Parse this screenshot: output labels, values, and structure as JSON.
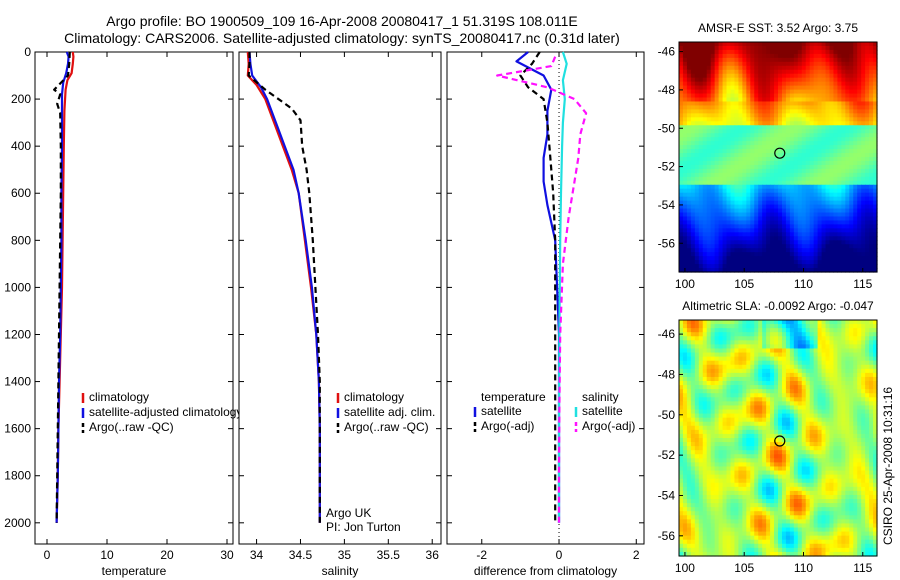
{
  "figure": {
    "title_line1": "Argo profile: BO 1900509_109 16-Apr-2008 20080417_1 51.319S 108.011E",
    "title_line2": "Climatology: CARS2006. Satellite-adjusted climatology: synTS_20080417.nc (0.31d later)",
    "side_caption": "CSIRO 25-Apr-2008 10:31:16"
  },
  "colors": {
    "climatology": "#e01010",
    "satellite": "#1010e0",
    "argo": "#000000",
    "sal_satellite": "#20e0e0",
    "sal_argo": "#ff10ff"
  },
  "chart_data": [
    {
      "id": "temperature",
      "type": "line",
      "xlabel": "temperature",
      "ylabel": "",
      "xlim": [
        -2,
        31
      ],
      "ylim": [
        0,
        2090
      ],
      "y_inverted": true,
      "xticks": [
        0,
        10,
        20,
        30
      ],
      "yticks": [
        0,
        200,
        400,
        600,
        800,
        1000,
        1200,
        1400,
        1600,
        1800,
        2000
      ],
      "legend": [
        "climatology",
        "satellite-adjusted climatology",
        "Argo(..raw -QC)"
      ],
      "legend_location": "lower-right",
      "series": [
        {
          "name": "climatology",
          "role": "climatology",
          "dash": "",
          "points": [
            [
              4.3,
              0
            ],
            [
              4.4,
              20
            ],
            [
              4.3,
              50
            ],
            [
              4.1,
              90
            ],
            [
              3.4,
              120
            ],
            [
              3.1,
              160
            ],
            [
              2.9,
              250
            ],
            [
              2.8,
              400
            ],
            [
              2.7,
              600
            ],
            [
              2.6,
              800
            ],
            [
              2.5,
              1000
            ],
            [
              2.3,
              1200
            ],
            [
              2.1,
              1400
            ],
            [
              1.9,
              1600
            ],
            [
              1.8,
              1800
            ],
            [
              1.6,
              2000
            ]
          ]
        },
        {
          "name": "satellite-adjusted climatology",
          "role": "satellite",
          "dash": "",
          "points": [
            [
              3.3,
              0
            ],
            [
              3.6,
              20
            ],
            [
              3.5,
              50
            ],
            [
              3.2,
              90
            ],
            [
              2.7,
              130
            ],
            [
              2.5,
              180
            ],
            [
              2.5,
              250
            ],
            [
              2.5,
              400
            ],
            [
              2.4,
              600
            ],
            [
              2.4,
              800
            ],
            [
              2.3,
              1000
            ],
            [
              2.2,
              1200
            ],
            [
              2.0,
              1400
            ],
            [
              1.9,
              1600
            ],
            [
              1.8,
              1800
            ],
            [
              1.6,
              2000
            ]
          ]
        },
        {
          "name": "Argo(..raw -QC)",
          "role": "argo",
          "dash": "6,4",
          "points": [
            [
              3.8,
              0
            ],
            [
              3.7,
              50
            ],
            [
              3.5,
              100
            ],
            [
              1.2,
              160
            ],
            [
              2.2,
              180
            ],
            [
              1.7,
              220
            ],
            [
              2.2,
              260
            ],
            [
              2.3,
              400
            ],
            [
              2.3,
              600
            ],
            [
              2.2,
              800
            ],
            [
              2.1,
              1000
            ],
            [
              2.0,
              1200
            ],
            [
              1.9,
              1400
            ],
            [
              1.8,
              1600
            ],
            [
              1.7,
              1800
            ],
            [
              1.6,
              2000
            ]
          ]
        }
      ]
    },
    {
      "id": "salinity",
      "type": "line",
      "xlabel": "salinity",
      "ylabel": "",
      "xlim": [
        33.8,
        36.1
      ],
      "ylim": [
        0,
        2090
      ],
      "y_inverted": true,
      "xticks": [
        34,
        34.5,
        35,
        35.5,
        36
      ],
      "legend": [
        "climatology",
        "satellite adj. clim.",
        "Argo(..raw -QC)"
      ],
      "legend_location": "lower-right",
      "annotation_line1": "Argo UK",
      "annotation_line2": "PI: Jon Turton",
      "series": [
        {
          "name": "climatology",
          "role": "climatology",
          "dash": "",
          "points": [
            [
              33.9,
              0
            ],
            [
              33.91,
              50
            ],
            [
              33.9,
              100
            ],
            [
              34.0,
              140
            ],
            [
              34.1,
              200
            ],
            [
              34.2,
              300
            ],
            [
              34.3,
              400
            ],
            [
              34.4,
              500
            ],
            [
              34.48,
              600
            ],
            [
              34.55,
              800
            ],
            [
              34.62,
              1000
            ],
            [
              34.68,
              1200
            ],
            [
              34.71,
              1400
            ],
            [
              34.72,
              1600
            ],
            [
              34.72,
              1800
            ],
            [
              34.72,
              2000
            ]
          ]
        },
        {
          "name": "satellite adj. clim.",
          "role": "satellite",
          "dash": "",
          "points": [
            [
              33.92,
              0
            ],
            [
              33.93,
              50
            ],
            [
              33.95,
              100
            ],
            [
              34.05,
              150
            ],
            [
              34.12,
              200
            ],
            [
              34.22,
              300
            ],
            [
              34.32,
              400
            ],
            [
              34.42,
              500
            ],
            [
              34.48,
              600
            ],
            [
              34.56,
              800
            ],
            [
              34.63,
              1000
            ],
            [
              34.68,
              1200
            ],
            [
              34.71,
              1400
            ],
            [
              34.72,
              1600
            ],
            [
              34.72,
              1800
            ],
            [
              34.72,
              2000
            ]
          ]
        },
        {
          "name": "Argo(..raw -QC)",
          "role": "argo",
          "dash": "6,4",
          "points": [
            [
              33.92,
              0
            ],
            [
              33.92,
              50
            ],
            [
              33.91,
              100
            ],
            [
              34.1,
              160
            ],
            [
              34.4,
              240
            ],
            [
              34.5,
              290
            ],
            [
              34.52,
              400
            ],
            [
              34.57,
              500
            ],
            [
              34.6,
              600
            ],
            [
              34.64,
              800
            ],
            [
              34.67,
              1000
            ],
            [
              34.7,
              1200
            ],
            [
              34.72,
              1400
            ],
            [
              34.72,
              1600
            ],
            [
              34.72,
              1800
            ],
            [
              34.72,
              2000
            ]
          ]
        }
      ]
    },
    {
      "id": "difference",
      "type": "line",
      "xlabel": "difference from climatology",
      "ylabel": "",
      "xlim": [
        -2.9,
        2.2
      ],
      "ylim": [
        0,
        2090
      ],
      "y_inverted": true,
      "xticks": [
        -2,
        0,
        2
      ],
      "legend_left_title": "temperature",
      "legend_left": [
        "satellite",
        "Argo(-adj)"
      ],
      "legend_right_title": "salinity",
      "legend_right": [
        "satellite",
        "Argo(-adj)"
      ],
      "legend_location": "lower-center",
      "series": [
        {
          "name": "temperature satellite",
          "role": "satellite",
          "dash": "",
          "points": [
            [
              -0.8,
              0
            ],
            [
              -1.1,
              40
            ],
            [
              -0.4,
              100
            ],
            [
              -0.2,
              160
            ],
            [
              -0.3,
              250
            ],
            [
              -0.3,
              350
            ],
            [
              -0.4,
              450
            ],
            [
              -0.4,
              550
            ],
            [
              -0.3,
              650
            ],
            [
              -0.1,
              800
            ],
            [
              -0.05,
              1000
            ],
            [
              0,
              1200
            ],
            [
              0,
              1400
            ],
            [
              0,
              1600
            ],
            [
              0,
              2000
            ]
          ]
        },
        {
          "name": "temperature Argo(-adj)",
          "role": "argo",
          "dash": "6,4",
          "points": [
            [
              -0.5,
              0
            ],
            [
              -0.7,
              50
            ],
            [
              -1.0,
              100
            ],
            [
              -0.8,
              150
            ],
            [
              -0.4,
              200
            ],
            [
              -0.3,
              300
            ],
            [
              -0.25,
              400
            ],
            [
              -0.15,
              600
            ],
            [
              -0.1,
              800
            ],
            [
              -0.1,
              1000
            ],
            [
              -0.1,
              1200
            ],
            [
              -0.1,
              1400
            ],
            [
              -0.1,
              1600
            ],
            [
              -0.1,
              1800
            ],
            [
              -0.1,
              2000
            ]
          ]
        },
        {
          "name": "salinity satellite",
          "role": "sal_satellite",
          "dash": "",
          "points": [
            [
              0.1,
              0
            ],
            [
              0.2,
              50
            ],
            [
              0.1,
              120
            ],
            [
              0.15,
              200
            ],
            [
              0.1,
              300
            ],
            [
              0.08,
              400
            ],
            [
              0.05,
              600
            ],
            [
              0.03,
              800
            ],
            [
              0.02,
              1000
            ],
            [
              0.01,
              1200
            ],
            [
              0,
              1500
            ],
            [
              0,
              2000
            ]
          ]
        },
        {
          "name": "salinity Argo(-adj)",
          "role": "sal_argo",
          "dash": "6,4",
          "points": [
            [
              -0.1,
              20
            ],
            [
              -0.2,
              60
            ],
            [
              -1.6,
              100
            ],
            [
              -0.3,
              150
            ],
            [
              0.4,
              200
            ],
            [
              0.7,
              260
            ],
            [
              0.55,
              350
            ],
            [
              0.5,
              450
            ],
            [
              0.4,
              550
            ],
            [
              0.25,
              700
            ],
            [
              0.1,
              900
            ],
            [
              0.03,
              1200
            ],
            [
              0.01,
              1500
            ],
            [
              0,
              1800
            ],
            [
              0,
              2000
            ]
          ]
        }
      ]
    },
    {
      "id": "sst_map",
      "type": "heatmap",
      "title": "AMSR-E SST: 3.52  Argo: 3.75",
      "xticks": [
        100,
        105,
        110,
        115
      ],
      "yticks": [
        -46,
        -48,
        -50,
        -52,
        -54,
        -56
      ],
      "xlim": [
        99.5,
        116.2
      ],
      "ylim": [
        -57.5,
        -45.5
      ],
      "colorscale": "jet",
      "marker": [
        108.0,
        -51.3
      ]
    },
    {
      "id": "sla_map",
      "type": "heatmap",
      "title": "Altimetric SLA: -0.0092  Argo: -0.047",
      "xticks": [
        100,
        105,
        110,
        115
      ],
      "yticks": [
        -46,
        -48,
        -50,
        -52,
        -54,
        -56
      ],
      "xlim": [
        99.5,
        116.2
      ],
      "ylim": [
        -57.0,
        -45.3
      ],
      "colorscale": "jet",
      "marker": [
        108.0,
        -51.3
      ]
    }
  ]
}
